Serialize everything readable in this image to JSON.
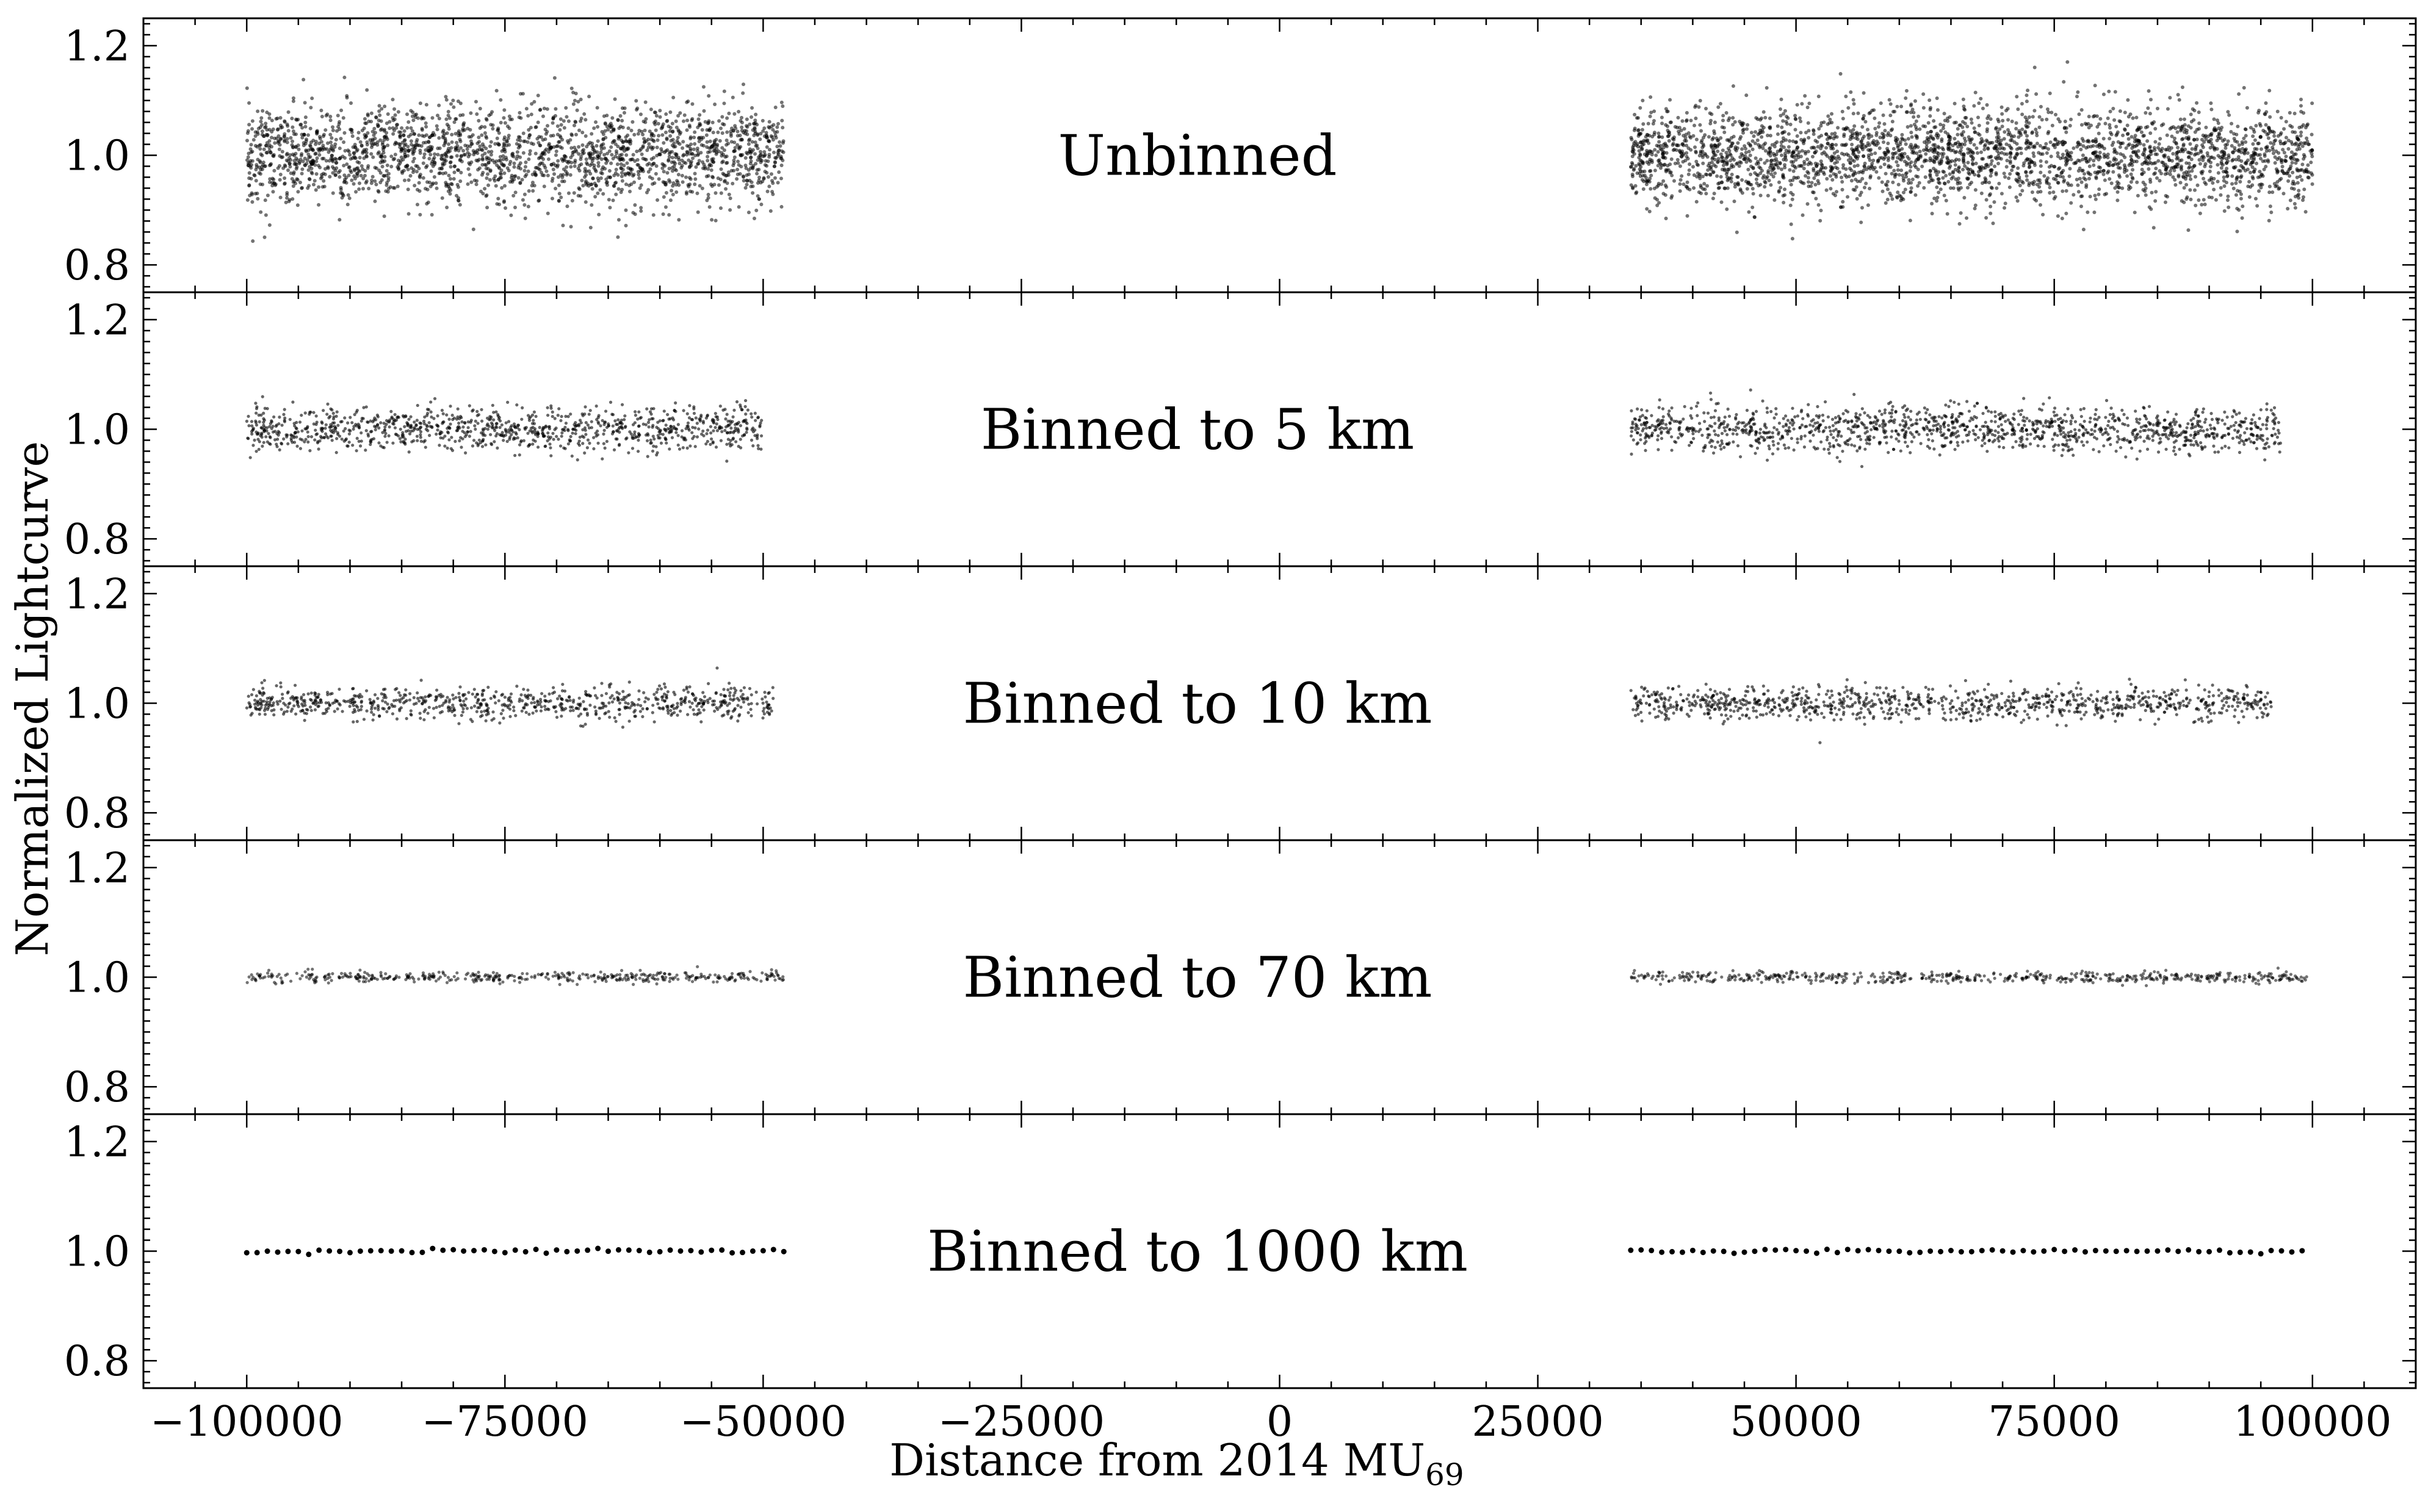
{
  "chart_data": {
    "type": "scatter",
    "shared_xaxis": true,
    "xlabel": "Distance from 2014 MU",
    "xlabel_subscript": "69",
    "ylabel": "Normalized Lightcurve",
    "xlim": [
      -110000,
      110000
    ],
    "ylim": [
      0.75,
      1.25
    ],
    "xticks": [
      -100000,
      -75000,
      -50000,
      -25000,
      0,
      25000,
      50000,
      75000,
      100000
    ],
    "xtick_labels": [
      "−100000",
      "−75000",
      "−50000",
      "−25000",
      "0",
      "25000",
      "50000",
      "75000",
      "100000"
    ],
    "yticks": [
      0.8,
      1.0,
      1.2
    ],
    "ytick_labels": [
      "0.8",
      "1.0",
      "1.2"
    ],
    "marker_color": "#000000",
    "grid": false,
    "panels": [
      {
        "label": "Unbinned",
        "bin_km": 0,
        "segments": [
          [
            -100000,
            -48000
          ],
          [
            34000,
            100000
          ]
        ],
        "center": 1.0,
        "scatter_sigma": 0.045,
        "point_count": 5200
      },
      {
        "label": "Binned to 5 km",
        "bin_km": 5,
        "segments": [
          [
            -100000,
            -50000
          ],
          [
            34000,
            97000
          ]
        ],
        "center": 1.0,
        "scatter_sigma": 0.02,
        "point_count": 2400
      },
      {
        "label": "Binned to 10 km",
        "bin_km": 10,
        "segments": [
          [
            -100000,
            -49000
          ],
          [
            34000,
            96000
          ]
        ],
        "center": 1.0,
        "scatter_sigma": 0.015,
        "point_count": 1800
      },
      {
        "label": "Binned to 70 km",
        "bin_km": 70,
        "segments": [
          [
            -100000,
            -48000
          ],
          [
            34000,
            99500
          ]
        ],
        "center": 1.0,
        "scatter_sigma": 0.005,
        "point_count": 1000
      },
      {
        "label": "Binned to 1000 km",
        "bin_km": 1000,
        "segments": [
          [
            -100000,
            -48000
          ],
          [
            34000,
            99000
          ]
        ],
        "center": 1.0,
        "scatter_sigma": 0.002,
        "point_count": 0
      }
    ]
  }
}
